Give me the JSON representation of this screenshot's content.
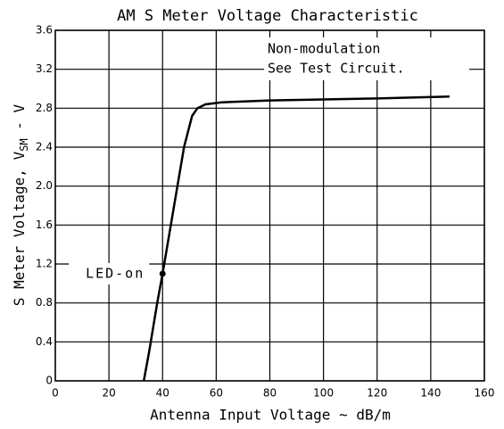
{
  "chart_data": {
    "type": "line",
    "title": "AM S Meter Voltage Characteristic",
    "xlabel": "Antenna Input Voltage ~ dB/m",
    "ylabel": "S Meter Voltage, V",
    "ylabel_sub": "SM",
    "ylabel_suffix": " - V",
    "notes": [
      "Non-modulation",
      "See Test Circuit."
    ],
    "xlim": [
      0,
      160
    ],
    "xticks": [
      0,
      20,
      40,
      60,
      80,
      100,
      120,
      140,
      160
    ],
    "ylim": [
      0,
      3.6
    ],
    "yticks": [
      0,
      0.4,
      0.8,
      1.2,
      1.6,
      {
        "value": 2,
        "label": "2.0"
      },
      2.4,
      2.8,
      3.2,
      3.6
    ],
    "grid": true,
    "series": [
      {
        "color": "#000000",
        "x": [
          33,
          35,
          38,
          40,
          44,
          48,
          51,
          53,
          56,
          62,
          80,
          100,
          120,
          147
        ],
        "values": [
          0,
          0.3,
          0.8,
          1.1,
          1.75,
          2.4,
          2.72,
          2.8,
          2.84,
          2.86,
          2.88,
          2.89,
          2.9,
          2.92
        ]
      }
    ],
    "annotations": [
      {
        "text": "LED-on",
        "x": 40,
        "y": 1.1
      }
    ]
  }
}
